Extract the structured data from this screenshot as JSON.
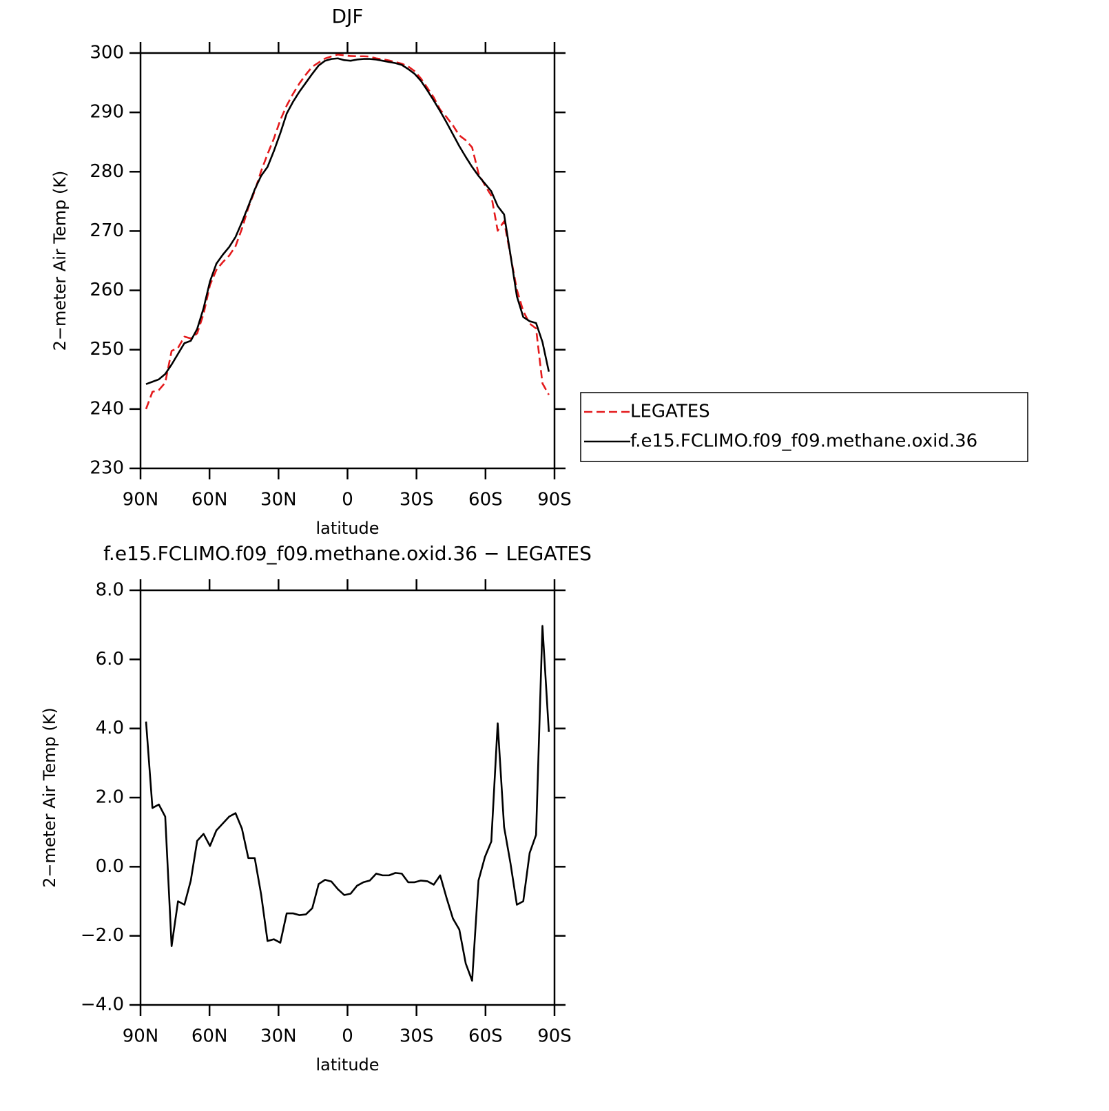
{
  "chart_data": [
    {
      "type": "line",
      "title": "DJF",
      "xlabel": "latitude",
      "ylabel": "2−meter Air Temp (K)",
      "x": [
        87.6,
        84.82,
        82.04,
        79.26,
        76.48,
        73.7,
        70.92,
        68.14,
        65.36,
        62.58,
        59.8,
        57.02,
        54.24,
        51.46,
        48.68,
        45.9,
        43.12,
        40.34,
        37.56,
        34.78,
        32,
        29.22,
        26.44,
        23.66,
        20.88,
        18.1,
        15.32,
        12.54,
        9.76,
        6.98,
        4.2,
        1.42,
        -1.36,
        -4.14,
        -6.92,
        -9.7,
        -12.48,
        -15.26,
        -18.04,
        -20.82,
        -23.6,
        -26.38,
        -29.16,
        -31.94,
        -34.72,
        -37.5,
        -40.28,
        -43.06,
        -45.84,
        -48.62,
        -51.4,
        -54.18,
        -56.96,
        -59.74,
        -62.52,
        -65.3,
        -68.08,
        -70.86,
        -73.64,
        -76.42,
        -79.2,
        -81.98,
        -84.76,
        -87.54
      ],
      "series": [
        {
          "name": "LEGATES",
          "color": "#e41a1c",
          "dashed": true,
          "values": [
            240.0,
            242.9,
            243.2,
            244.45,
            249.8,
            250.3,
            252.2,
            251.9,
            252.75,
            256.05,
            260.9,
            263.45,
            264.75,
            265.85,
            267.45,
            270.4,
            273.95,
            276.75,
            280.1,
            282.95,
            285.6,
            288.7,
            291.15,
            293.15,
            294.9,
            296.38,
            297.7,
            298.4,
            299.08,
            299.43,
            299.75,
            299.62,
            299.48,
            299.45,
            299.45,
            299.4,
            299.1,
            298.95,
            298.75,
            298.48,
            298.2,
            297.75,
            296.95,
            295.7,
            294.12,
            292.52,
            290.45,
            289.2,
            287.8,
            286.12,
            285.3,
            284.1,
            279.7,
            277.72,
            275.97,
            270.05,
            271.65,
            265.9,
            260.1,
            256.5,
            254.4,
            253.58,
            244.33,
            242.4
          ]
        },
        {
          "name": "f.e15.FCLIMO.f09_f09.methane.oxid.36",
          "color": "#000000",
          "dashed": false,
          "values": [
            244.2,
            244.6,
            245.0,
            245.9,
            247.5,
            249.3,
            251.1,
            251.5,
            253.5,
            257,
            261.5,
            264.5,
            266,
            267.3,
            269,
            271.5,
            274.2,
            277,
            279.3,
            280.8,
            283.5,
            286.5,
            289.8,
            291.8,
            293.5,
            295,
            296.5,
            297.9,
            298.7,
            299,
            299.1,
            298.8,
            298.7,
            298.9,
            299,
            299,
            298.9,
            298.7,
            298.5,
            298.3,
            298.0,
            297.3,
            296.5,
            295.3,
            293.7,
            292,
            290.2,
            288.3,
            286.3,
            284.3,
            282.5,
            280.8,
            279.3,
            278,
            276.7,
            274.2,
            272.8,
            266,
            259,
            255.5,
            254.8,
            254.5,
            251.3,
            246.3
          ]
        }
      ],
      "xlim": [
        90,
        -90
      ],
      "xticks": [
        {
          "value": 90,
          "label": "90N"
        },
        {
          "value": 60,
          "label": "60N"
        },
        {
          "value": 30,
          "label": "30N"
        },
        0,
        {
          "value": -30,
          "label": "30S"
        },
        {
          "value": -60,
          "label": "60S"
        },
        {
          "value": -90,
          "label": "90S"
        }
      ],
      "ylim": [
        230,
        300
      ],
      "yticks": [
        230,
        240,
        250,
        260,
        270,
        280,
        290,
        300
      ],
      "legend": "right"
    },
    {
      "type": "line",
      "title": "f.e15.FCLIMO.f09_f09.methane.oxid.36 − LEGATES",
      "xlabel": "latitude",
      "ylabel": "2−meter Air Temp (K)",
      "x": [
        87.6,
        84.82,
        82.04,
        79.26,
        76.48,
        73.7,
        70.92,
        68.14,
        65.36,
        62.58,
        59.8,
        57.02,
        54.24,
        51.46,
        48.68,
        45.9,
        43.12,
        40.34,
        37.56,
        34.78,
        32,
        29.22,
        26.44,
        23.66,
        20.88,
        18.1,
        15.32,
        12.54,
        9.76,
        6.98,
        4.2,
        1.42,
        -1.36,
        -4.14,
        -6.92,
        -9.7,
        -12.48,
        -15.26,
        -18.04,
        -20.82,
        -23.6,
        -26.38,
        -29.16,
        -31.94,
        -34.72,
        -37.5,
        -40.28,
        -43.06,
        -45.84,
        -48.62,
        -51.4,
        -54.18,
        -56.96,
        -59.74,
        -62.52,
        -65.3,
        -68.08,
        -70.86,
        -73.64,
        -76.42,
        -79.2,
        -81.98,
        -84.76,
        -87.54
      ],
      "series": [
        {
          "color": "#000000",
          "dashed": false,
          "values": [
            4.2,
            1.7,
            1.8,
            1.45,
            -2.3,
            -1.0,
            -1.1,
            -0.4,
            0.75,
            0.95,
            0.6,
            1.05,
            1.25,
            1.45,
            1.55,
            1.1,
            0.25,
            0.25,
            -0.8,
            -2.15,
            -2.1,
            -2.2,
            -1.35,
            -1.35,
            -1.4,
            -1.38,
            -1.2,
            -0.5,
            -0.38,
            -0.43,
            -0.65,
            -0.82,
            -0.78,
            -0.55,
            -0.45,
            -0.4,
            -0.2,
            -0.25,
            -0.25,
            -0.18,
            -0.2,
            -0.45,
            -0.45,
            -0.4,
            -0.42,
            -0.52,
            -0.25,
            -0.9,
            -1.5,
            -1.82,
            -2.8,
            -3.3,
            -0.4,
            0.28,
            0.73,
            4.15,
            1.15,
            0.1,
            -1.1,
            -1.0,
            0.4,
            0.92,
            6.97,
            3.9
          ]
        }
      ],
      "xlim": [
        90,
        -90
      ],
      "xticks": [
        {
          "value": 90,
          "label": "90N"
        },
        {
          "value": 60,
          "label": "60N"
        },
        {
          "value": 30,
          "label": "30N"
        },
        0,
        {
          "value": -30,
          "label": "30S"
        },
        {
          "value": -60,
          "label": "60S"
        },
        {
          "value": -90,
          "label": "90S"
        }
      ],
      "ylim": [
        -4,
        8
      ],
      "yticks": [
        {
          "value": -4,
          "label": "−4.0"
        },
        {
          "value": -2,
          "label": "−2.0"
        },
        {
          "value": 0,
          "label": "0.0"
        },
        {
          "value": 2,
          "label": "2.0"
        },
        {
          "value": 4,
          "label": "4.0"
        },
        {
          "value": 6,
          "label": "6.0"
        },
        {
          "value": 8,
          "label": "8.0"
        }
      ]
    }
  ]
}
